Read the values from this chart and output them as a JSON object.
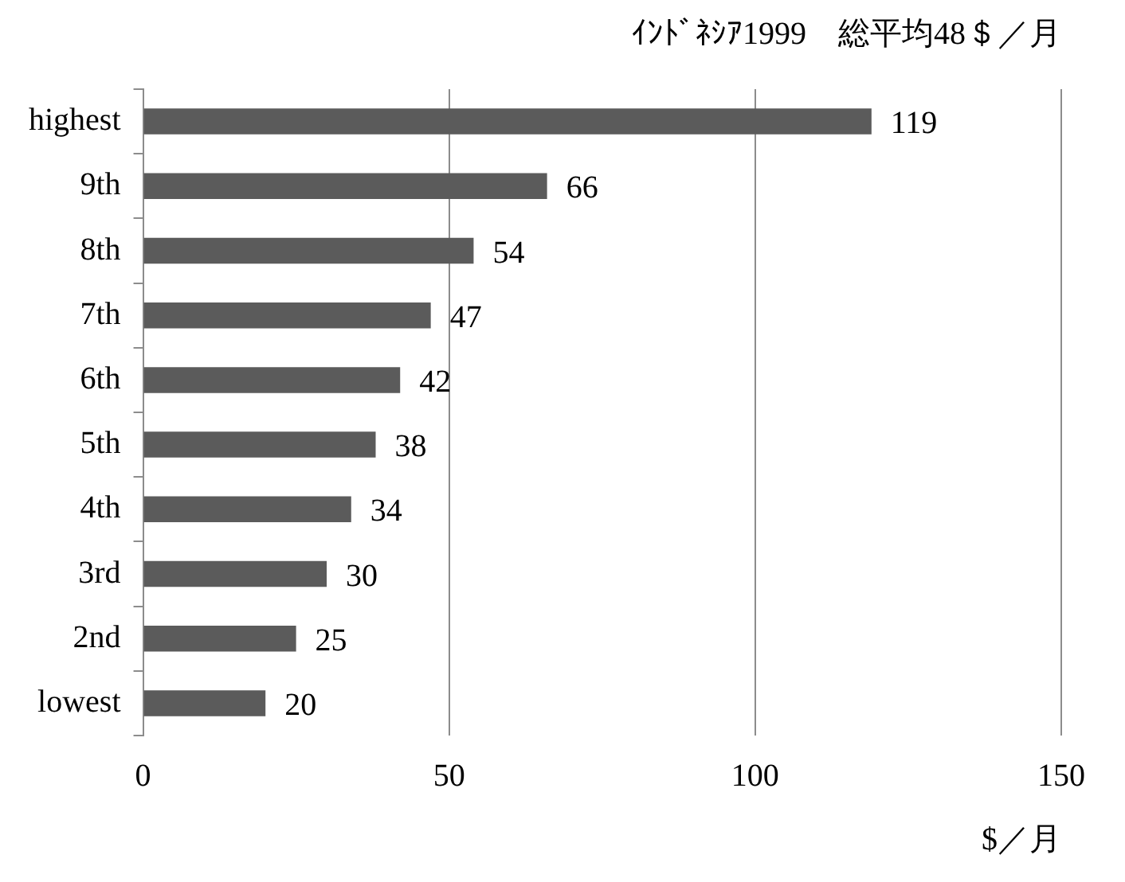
{
  "chart_data": {
    "type": "bar",
    "orientation": "horizontal",
    "title": "ｲﾝﾄﾞﾈｼｱ1999　総平均48＄／月",
    "xlabel": "$／月",
    "categories": [
      "highest",
      "9th",
      "8th",
      "7th",
      "6th",
      "5th",
      "4th",
      "3rd",
      "2nd",
      "lowest"
    ],
    "values": [
      119,
      66,
      54,
      47,
      42,
      38,
      34,
      30,
      25,
      20
    ],
    "color": "#5b5b5b",
    "xlim": [
      0,
      150
    ],
    "xticks": [
      0,
      50,
      100,
      150
    ],
    "grid": "x",
    "data_labels": true
  }
}
